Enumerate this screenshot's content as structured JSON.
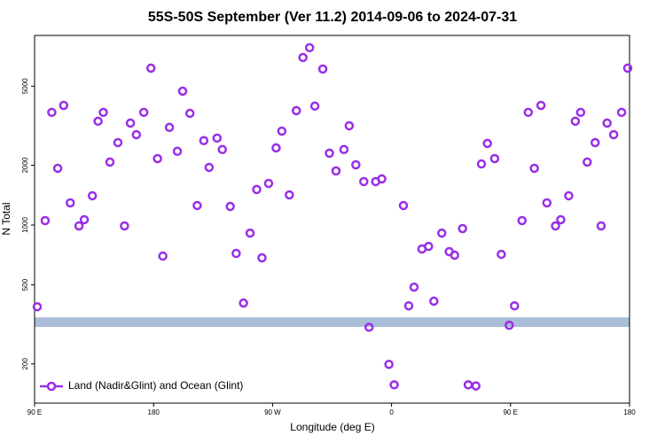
{
  "chart_data": {
    "type": "scatter",
    "title": "55S-50S September (Ver 11.2)   2014-09-06 to 2024-07-31",
    "x_label": "Longitude (deg E)",
    "y_label": "N Total",
    "log_y": true,
    "legend": "bottom-left",
    "xlim": [
      90,
      540
    ],
    "xticks": [
      {
        "value": 90,
        "label": "90 E"
      },
      {
        "value": 180,
        "label": "180"
      },
      {
        "value": 270,
        "label": "90 W"
      },
      {
        "value": 360,
        "label": "0"
      },
      {
        "value": 450,
        "label": "90 E"
      },
      {
        "value": 540,
        "label": "180"
      }
    ],
    "ylim": [
      127,
      9000
    ],
    "yticks": [
      200,
      500,
      1000,
      2000,
      5000
    ],
    "band_range": [
      307,
      343
    ],
    "band_color": "#a9bcd8",
    "series": [
      {
        "name": "Land (Nadir&Glint) and Ocean (Glint)",
        "color": "#9a2ee6",
        "x": [
          92,
          98,
          103,
          107.5,
          112,
          117,
          123.6,
          127.6,
          133.7,
          138,
          142,
          147,
          153,
          158,
          162.5,
          167,
          172.6,
          178,
          183,
          187,
          192,
          198,
          202,
          207.5,
          213,
          218,
          222,
          228,
          232,
          238,
          242.5,
          248,
          253,
          258,
          262,
          267,
          272.7,
          277,
          282.7,
          288,
          293,
          298,
          302,
          308,
          313,
          318,
          324,
          328,
          333,
          339,
          343,
          348,
          352.6,
          358,
          362,
          369,
          373,
          377,
          383,
          388,
          392,
          398,
          403.6,
          407.7,
          413.7,
          418,
          423.8,
          428,
          432.5,
          438,
          443,
          449,
          453,
          458.7,
          463.4,
          468,
          473,
          477.5,
          484,
          488,
          494,
          499,
          503,
          508,
          514,
          518.5,
          523,
          528,
          534,
          538.6
        ],
        "values": [
          388,
          1053,
          3690,
          1930,
          4000,
          1293,
          990,
          1064,
          1404,
          3330,
          3690,
          2075,
          2600,
          990,
          3260,
          2850,
          3690,
          6160,
          2160,
          698,
          3100,
          2350,
          4720,
          3650,
          1254,
          2660,
          1950,
          2740,
          2400,
          1240,
          720,
          405,
          911,
          1510,
          684,
          1620,
          2445,
          2970,
          1418,
          3765,
          6970,
          7810,
          3970,
          6100,
          2300,
          1873,
          2400,
          3160,
          2010,
          1655,
          306,
          1655,
          1707,
          199,
          157,
          1254,
          392,
          487,
          758,
          781,
          414,
          911,
          735,
          705,
          960,
          157,
          155,
          2030,
          2575,
          2160,
          712,
          313,
          392,
          1053,
          3690,
          1930,
          4000,
          1293,
          990,
          1064,
          1404,
          3330,
          3690,
          2075,
          2600,
          990,
          3260,
          2850,
          3690,
          6160
        ]
      }
    ]
  }
}
